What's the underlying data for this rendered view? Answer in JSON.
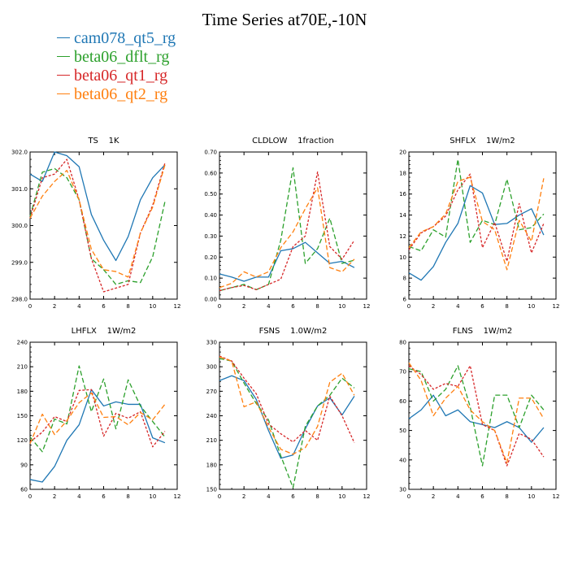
{
  "title": "Time Series at70E,-10N",
  "legend": [
    {
      "label": "cam078_qt5_rg",
      "color": "#1f77b4",
      "dash": "none"
    },
    {
      "label": "beta06_dflt_rg",
      "color": "#2ca02c",
      "dash": "6,3"
    },
    {
      "label": "beta06_qt1_rg",
      "color": "#d62728",
      "dash": "3,2"
    },
    {
      "label": "beta06_qt2_rg",
      "color": "#ff7f0e",
      "dash": "6,3"
    }
  ],
  "chart_data": [
    {
      "type": "line",
      "title": "TS    1K",
      "x": [
        0,
        1,
        2,
        3,
        4,
        5,
        6,
        7,
        8,
        9,
        10,
        11
      ],
      "xlim": [
        0,
        12
      ],
      "xticks": [
        "0",
        "2",
        "4",
        "6",
        "8",
        "10",
        "12"
      ],
      "ylim": [
        298.0,
        302.0
      ],
      "yticks": [
        "298.0",
        "299.0",
        "300.0",
        "301.0",
        "302.0"
      ],
      "series": [
        {
          "name": "cam078_qt5_rg",
          "values": [
            301.4,
            301.2,
            302.0,
            301.9,
            301.6,
            300.3,
            299.6,
            299.05,
            299.7,
            300.7,
            301.3,
            301.65
          ]
        },
        {
          "name": "beta06_dflt_rg",
          "values": [
            300.25,
            301.45,
            301.55,
            301.3,
            300.7,
            299.1,
            298.8,
            298.4,
            298.5,
            298.45,
            299.15,
            300.65
          ]
        },
        {
          "name": "beta06_qt1_rg",
          "values": [
            300.2,
            301.3,
            301.4,
            301.8,
            300.7,
            299.1,
            298.2,
            298.3,
            298.4,
            299.8,
            300.55,
            301.7
          ]
        },
        {
          "name": "beta06_qt2_rg",
          "values": [
            300.2,
            300.8,
            301.2,
            301.5,
            300.7,
            299.35,
            298.8,
            298.75,
            298.6,
            299.8,
            300.5,
            301.65
          ]
        }
      ]
    },
    {
      "type": "line",
      "title": "CLDLOW    1fraction",
      "x": [
        0,
        1,
        2,
        3,
        4,
        5,
        6,
        7,
        8,
        9,
        10,
        11
      ],
      "xlim": [
        0,
        12
      ],
      "xticks": [
        "0",
        "2",
        "4",
        "6",
        "8",
        "10",
        "12"
      ],
      "ylim": [
        0.0,
        0.7
      ],
      "yticks": [
        "0.00",
        "0.10",
        "0.20",
        "0.30",
        "0.40",
        "0.50",
        "0.60",
        "0.70"
      ],
      "series": [
        {
          "name": "cam078_qt5_rg",
          "values": [
            0.12,
            0.105,
            0.085,
            0.105,
            0.105,
            0.23,
            0.24,
            0.27,
            0.22,
            0.17,
            0.18,
            0.15
          ]
        },
        {
          "name": "beta06_dflt_rg",
          "values": [
            0.04,
            0.055,
            0.07,
            0.045,
            0.07,
            0.28,
            0.625,
            0.17,
            0.24,
            0.385,
            0.17,
            0.185
          ]
        },
        {
          "name": "beta06_qt1_rg",
          "values": [
            0.04,
            0.055,
            0.065,
            0.045,
            0.07,
            0.095,
            0.25,
            0.3,
            0.605,
            0.25,
            0.19,
            0.28
          ]
        },
        {
          "name": "beta06_qt2_rg",
          "values": [
            0.055,
            0.075,
            0.13,
            0.105,
            0.13,
            0.245,
            0.32,
            0.43,
            0.53,
            0.15,
            0.13,
            0.19
          ]
        }
      ]
    },
    {
      "type": "line",
      "title": "SHFLX    1W/m2",
      "x": [
        0,
        1,
        2,
        3,
        4,
        5,
        6,
        7,
        8,
        9,
        10,
        11
      ],
      "xlim": [
        0,
        12
      ],
      "xticks": [
        "0",
        "2",
        "4",
        "6",
        "8",
        "10",
        "12"
      ],
      "ylim": [
        6,
        20
      ],
      "yticks": [
        "6",
        "8",
        "10",
        "12",
        "14",
        "16",
        "18",
        "20"
      ],
      "series": [
        {
          "name": "cam078_qt5_rg",
          "values": [
            8.5,
            7.8,
            9.1,
            11.4,
            13.2,
            16.8,
            16.1,
            13.1,
            13.2,
            14.0,
            14.6,
            12.1
          ]
        },
        {
          "name": "beta06_dflt_rg",
          "values": [
            11.0,
            10.6,
            12.6,
            11.9,
            19.3,
            11.4,
            13.5,
            13.1,
            17.4,
            12.6,
            12.8,
            14.1
          ]
        },
        {
          "name": "beta06_qt1_rg",
          "values": [
            10.7,
            12.3,
            12.9,
            13.9,
            16.4,
            17.9,
            10.9,
            13.3,
            9.6,
            15.1,
            10.4,
            13.2
          ]
        },
        {
          "name": "beta06_qt2_rg",
          "values": [
            10.9,
            12.4,
            12.9,
            14.1,
            17.2,
            17.6,
            13.4,
            12.6,
            8.8,
            13.5,
            11.5,
            17.5
          ]
        }
      ]
    },
    {
      "type": "line",
      "title": "LHFLX    1W/m2",
      "x": [
        0,
        1,
        2,
        3,
        4,
        5,
        6,
        7,
        8,
        9,
        10,
        11
      ],
      "xlim": [
        0,
        12
      ],
      "xticks": [
        "0",
        "2",
        "4",
        "6",
        "8",
        "10",
        "12"
      ],
      "ylim": [
        60,
        240
      ],
      "yticks": [
        "60",
        "90",
        "120",
        "150",
        "180",
        "210",
        "240"
      ],
      "series": [
        {
          "name": "cam078_qt5_rg",
          "values": [
            72,
            69,
            88,
            120,
            139,
            182,
            162,
            167,
            164,
            164,
            123,
            117
          ]
        },
        {
          "name": "beta06_dflt_rg",
          "values": [
            124,
            106,
            146,
            140,
            211,
            155,
            195,
            134,
            194,
            162,
            143,
            124
          ]
        },
        {
          "name": "beta06_qt1_rg",
          "values": [
            118,
            130,
            149,
            143,
            181,
            182,
            125,
            153,
            147,
            155,
            112,
            131
          ]
        },
        {
          "name": "beta06_qt2_rg",
          "values": [
            116,
            152,
            127,
            144,
            166,
            178,
            148,
            149,
            139,
            154,
            145,
            164
          ]
        }
      ]
    },
    {
      "type": "line",
      "title": "FSNS    1.0W/m2",
      "x": [
        0,
        1,
        2,
        3,
        4,
        5,
        6,
        7,
        8,
        9,
        10,
        11
      ],
      "xlim": [
        0,
        12
      ],
      "xticks": [
        "0",
        "2",
        "4",
        "6",
        "8",
        "10",
        "12"
      ],
      "ylim": [
        150,
        330
      ],
      "yticks": [
        "150",
        "180",
        "210",
        "240",
        "270",
        "300",
        "330"
      ],
      "series": [
        {
          "name": "cam078_qt5_rg",
          "values": [
            283,
            289,
            283,
            260,
            222,
            188,
            192,
            224,
            252,
            262,
            241,
            264
          ]
        },
        {
          "name": "beta06_dflt_rg",
          "values": [
            310,
            307,
            280,
            255,
            235,
            191,
            152,
            227,
            252,
            265,
            286,
            274
          ]
        },
        {
          "name": "beta06_qt1_rg",
          "values": [
            313,
            307,
            286,
            267,
            230,
            218,
            208,
            222,
            210,
            264,
            240,
            207
          ]
        },
        {
          "name": "beta06_qt2_rg",
          "values": [
            312,
            307,
            251,
            257,
            226,
            199,
            193,
            201,
            227,
            281,
            292,
            265
          ]
        }
      ]
    },
    {
      "type": "line",
      "title": "FLNS    1W/m2",
      "x": [
        0,
        1,
        2,
        3,
        4,
        5,
        6,
        7,
        8,
        9,
        10,
        11
      ],
      "xlim": [
        0,
        12
      ],
      "xticks": [
        "0",
        "2",
        "4",
        "6",
        "8",
        "10",
        "12"
      ],
      "ylim": [
        30,
        80
      ],
      "yticks": [
        "30",
        "40",
        "50",
        "60",
        "70",
        "80"
      ],
      "series": [
        {
          "name": "cam078_qt5_rg",
          "values": [
            54,
            57,
            62,
            55,
            57,
            53,
            52,
            51,
            53,
            51,
            46,
            51
          ]
        },
        {
          "name": "beta06_dflt_rg",
          "values": [
            71,
            70,
            60,
            64,
            72,
            58,
            38,
            62,
            62,
            51,
            62,
            57
          ]
        },
        {
          "name": "beta06_qt1_rg",
          "values": [
            72,
            69,
            64,
            66,
            65,
            72,
            52,
            50,
            38,
            49,
            47,
            41
          ]
        },
        {
          "name": "beta06_qt2_rg",
          "values": [
            73,
            67,
            55,
            61,
            65,
            57,
            53,
            50,
            39,
            61,
            61,
            54
          ]
        }
      ]
    }
  ]
}
